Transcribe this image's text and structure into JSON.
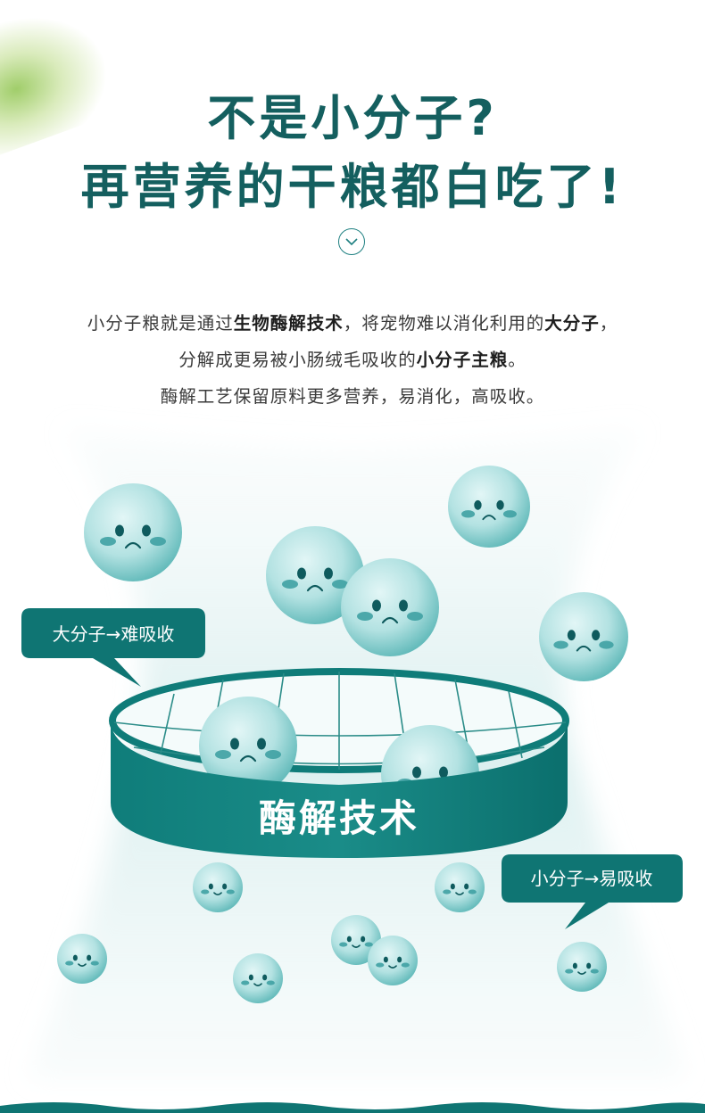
{
  "title": {
    "line1": "不是小分子?",
    "line2": "再营养的干粮都白吃了!"
  },
  "scroll_hint_icon": "chevron-down-circle",
  "description": {
    "line1": {
      "p1": "小分子粮就是通过",
      "b1": "生物酶解技术",
      "p2": "，将宠物难以消化利用的",
      "b2": "大分子",
      "p3": "，"
    },
    "line2": {
      "p1": "分解成更易被小肠绒毛吸收的",
      "b1": "小分子主粮",
      "p2": "。"
    },
    "line3": "酶解工艺保留原料更多营养，易消化，高吸收。"
  },
  "labels": {
    "large_molecule": "大分子→难吸收",
    "small_molecule": "小分子→易吸收",
    "filter": "酶解技术"
  },
  "colors": {
    "title": "#145f5f",
    "teal_dark": "#0b7472",
    "teal_mid": "#1d8784",
    "molecule_light": "#d4f1f1",
    "molecule_dark": "#5fb9b9",
    "cheek": "#3fa1a3",
    "face": "#0f5b5e"
  }
}
